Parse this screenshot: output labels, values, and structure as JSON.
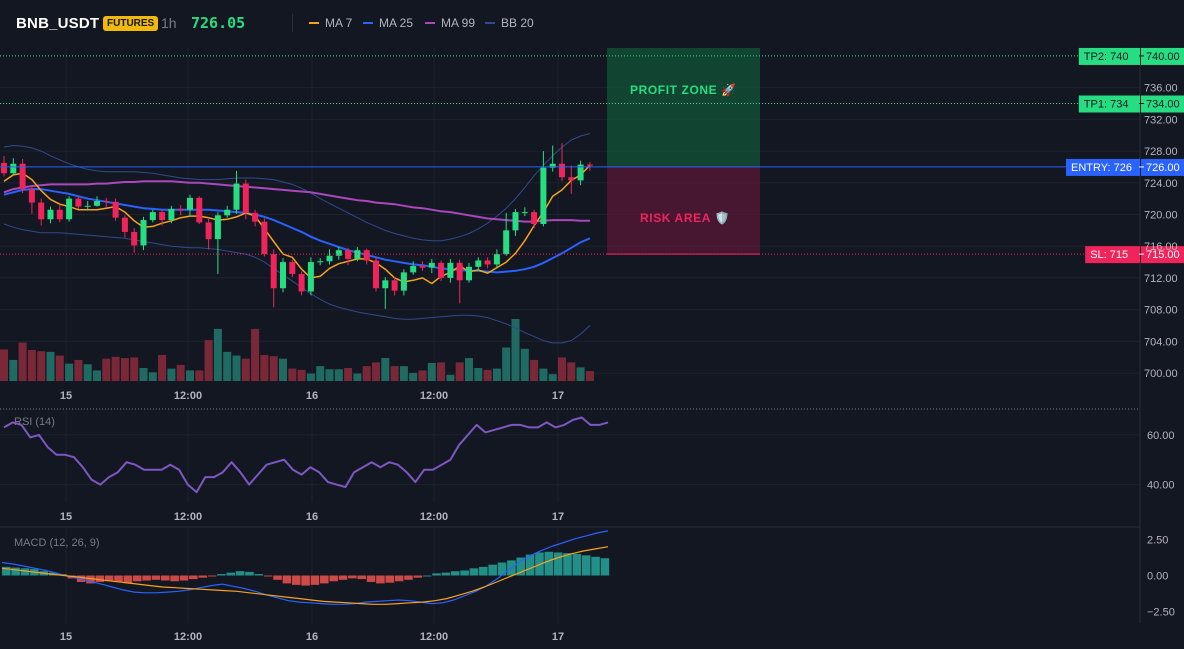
{
  "header": {
    "symbol": "BNB_USDT",
    "badge": "FUTURES",
    "timeframe": "1h",
    "price": "726.05"
  },
  "indicators": [
    {
      "label": "MA 7",
      "color": "#f7a21b"
    },
    {
      "label": "MA 25",
      "color": "#2962ff"
    },
    {
      "label": "MA 99",
      "color": "#ab47bc"
    },
    {
      "label": "BB 20",
      "color": "#2f4b8e"
    }
  ],
  "zones": {
    "profit_label": "PROFIT ZONE 🚀",
    "risk_label": "RISK AREA 🛡️"
  },
  "levels": [
    {
      "price": 740,
      "tag": "TP2: 740",
      "axis_label": "740.00",
      "color": "#26de81",
      "text_color": "#131722",
      "line": "dotted"
    },
    {
      "price": 734,
      "tag": "TP1: 734",
      "axis_label": "734.00",
      "color": "#26de81",
      "text_color": "#131722",
      "line": "dotted"
    },
    {
      "price": 726,
      "tag": "ENTRY: 726",
      "axis_label": "726.00",
      "color": "#2962ff",
      "text_color": "#ffffff",
      "line": "solid"
    },
    {
      "price": 715,
      "tag": "SL: 715",
      "axis_label": "715.00",
      "color": "#f0245b",
      "text_color": "#ffffff",
      "line": "dotted"
    }
  ],
  "x_ticks": [
    "15",
    "12:00",
    "16",
    "12:00",
    "17"
  ],
  "rsi_label": "RSI (14)",
  "macd_label": "MACD (12, 26, 9)",
  "chart_data": [
    {
      "type": "candlestick",
      "title": "BNB_USDT",
      "ylim": [
        699,
        741
      ],
      "yticks": [
        700,
        704,
        708,
        712,
        716,
        720,
        724,
        728,
        732,
        736
      ],
      "ytick_labels": [
        "700.00",
        "704.00",
        "708.00",
        "712.00",
        "716.00",
        "720.00",
        "724.00",
        "728.00",
        "732.00",
        "736.00"
      ],
      "open": [
        726.5,
        725.2,
        726.4,
        723.2,
        721.5,
        719.4,
        720.6,
        719.4,
        722.0,
        721.0,
        721.1,
        721.7,
        721.6,
        719.6,
        717.8,
        716.1,
        719.3,
        720.3,
        719.3,
        720.7,
        720.6,
        722.1,
        719.0,
        716.9,
        719.9,
        720.6,
        723.9,
        720.2,
        719.1,
        715.0,
        710.7,
        714.0,
        712.5,
        710.3,
        714.0,
        714.1,
        714.8,
        715.5,
        714.4,
        715.5,
        714.2,
        710.7,
        711.7,
        710.4,
        712.7,
        713.5,
        713.3,
        713.9,
        712.0,
        713.9,
        711.7,
        713.4,
        714.2,
        713.7,
        715.0,
        718.0,
        720.3,
        720.3,
        718.8,
        725.9,
        726.4,
        724.7,
        724.3,
        726.3
      ],
      "close": [
        725.2,
        726.4,
        723.2,
        721.5,
        719.4,
        720.6,
        719.4,
        722.0,
        721.0,
        721.1,
        721.7,
        721.6,
        719.6,
        717.8,
        716.1,
        719.3,
        720.3,
        719.3,
        720.7,
        720.6,
        722.1,
        719.0,
        716.9,
        719.9,
        720.6,
        723.9,
        720.2,
        719.1,
        715.0,
        710.7,
        714.0,
        712.5,
        710.3,
        714.0,
        714.1,
        714.8,
        715.5,
        714.4,
        715.5,
        714.2,
        710.7,
        711.7,
        710.4,
        712.7,
        713.5,
        713.3,
        713.9,
        712.0,
        713.9,
        711.7,
        713.4,
        714.2,
        713.7,
        715.0,
        718.0,
        720.3,
        720.3,
        718.8,
        725.9,
        726.4,
        724.7,
        724.3,
        726.3,
        726.2
      ],
      "high": [
        727.4,
        727.1,
        727.0,
        723.6,
        722.0,
        721.0,
        721.3,
        722.3,
        722.3,
        721.7,
        722.3,
        722.1,
        722.0,
        719.9,
        718.3,
        719.7,
        720.6,
        720.6,
        721.1,
        721.2,
        722.5,
        722.3,
        719.6,
        720.3,
        721.1,
        725.5,
        724.4,
        720.6,
        719.5,
        715.6,
        714.5,
        714.3,
        712.8,
        714.6,
        714.5,
        715.6,
        715.9,
        715.8,
        715.9,
        715.7,
        714.6,
        712.1,
        712.1,
        713.1,
        714.1,
        714.1,
        714.4,
        714.2,
        714.4,
        714.3,
        713.9,
        714.6,
        714.6,
        715.6,
        720.2,
        720.7,
        720.9,
        720.6,
        728.0,
        728.7,
        729.0,
        726.2,
        726.8,
        726.6
      ],
      "low": [
        724.8,
        724.9,
        722.7,
        720.1,
        718.6,
        718.9,
        719.0,
        719.1,
        720.7,
        720.6,
        721.0,
        720.9,
        719.2,
        717.1,
        715.2,
        715.5,
        719.0,
        718.6,
        718.9,
        719.9,
        719.8,
        718.8,
        715.6,
        712.5,
        719.6,
        720.1,
        719.4,
        718.5,
        714.7,
        708.3,
        710.2,
        712.1,
        709.8,
        709.8,
        713.6,
        713.7,
        714.3,
        713.6,
        714.1,
        713.7,
        710.3,
        708.1,
        709.8,
        709.8,
        712.4,
        712.9,
        712.6,
        711.6,
        711.4,
        708.8,
        711.4,
        712.9,
        713.2,
        713.2,
        714.8,
        717.3,
        719.8,
        718.3,
        718.5,
        725.4,
        724.2,
        722.6,
        723.7,
        725.5
      ],
      "volume": [
        0.51,
        0.34,
        0.62,
        0.5,
        0.48,
        0.47,
        0.41,
        0.28,
        0.34,
        0.27,
        0.17,
        0.36,
        0.39,
        0.37,
        0.38,
        0.21,
        0.14,
        0.42,
        0.2,
        0.26,
        0.17,
        0.17,
        0.66,
        0.84,
        0.47,
        0.41,
        0.36,
        0.84,
        0.42,
        0.4,
        0.36,
        0.2,
        0.18,
        0.12,
        0.24,
        0.19,
        0.19,
        0.21,
        0.12,
        0.24,
        0.3,
        0.37,
        0.24,
        0.24,
        0.13,
        0.17,
        0.29,
        0.3,
        0.1,
        0.3,
        0.37,
        0.21,
        0.18,
        0.2,
        0.54,
        1.0,
        0.52,
        0.34,
        0.2,
        0.11,
        0.38,
        0.3,
        0.22,
        0.16
      ],
      "ma7": [
        724.2,
        725.0,
        725.2,
        724.4,
        723.0,
        721.9,
        721.3,
        721.0,
        720.6,
        720.6,
        720.6,
        720.8,
        721.0,
        720.3,
        719.2,
        718.4,
        718.5,
        718.9,
        719.2,
        719.6,
        719.8,
        719.8,
        719.6,
        719.3,
        719.4,
        719.7,
        720.2,
        719.8,
        718.2,
        716.6,
        715.0,
        714.6,
        713.1,
        712.0,
        712.2,
        713.2,
        713.8,
        714.1,
        714.4,
        714.4,
        713.9,
        713.1,
        712.0,
        711.5,
        711.7,
        712.0,
        711.3,
        712.2,
        712.7,
        713.5,
        712.8,
        713.0,
        712.6,
        713.3,
        714.0,
        715.1,
        716.7,
        718.6,
        720.3,
        722.3,
        723.1,
        724.3,
        725.0,
        726.2
      ],
      "ma25": [
        722.5,
        722.8,
        723.1,
        723.2,
        723.2,
        723.0,
        722.8,
        722.6,
        722.3,
        722.0,
        721.8,
        721.6,
        721.4,
        721.2,
        721.0,
        720.8,
        720.7,
        720.6,
        720.6,
        720.6,
        720.6,
        720.6,
        720.6,
        720.5,
        720.4,
        720.3,
        720.2,
        720.0,
        719.7,
        719.3,
        718.8,
        718.3,
        717.8,
        717.2,
        716.7,
        716.3,
        715.9,
        715.5,
        715.2,
        714.9,
        714.6,
        714.3,
        714.1,
        713.9,
        713.7,
        713.6,
        713.4,
        713.2,
        713.1,
        713.0,
        712.9,
        712.9,
        712.8,
        712.7,
        712.8,
        712.9,
        713.1,
        713.4,
        713.9,
        714.5,
        715.1,
        715.8,
        716.5,
        717.0
      ],
      "ma99": [
        722.8,
        723.2,
        723.4,
        723.6,
        723.7,
        723.8,
        723.8,
        723.8,
        723.8,
        723.8,
        723.9,
        723.9,
        724.0,
        724.1,
        724.1,
        724.2,
        724.2,
        724.2,
        724.2,
        724.1,
        724.0,
        724.0,
        723.9,
        723.8,
        723.7,
        723.6,
        723.5,
        723.4,
        723.3,
        723.2,
        723.1,
        723.0,
        722.9,
        722.8,
        722.6,
        722.4,
        722.2,
        722.0,
        721.8,
        721.7,
        721.5,
        721.4,
        721.3,
        721.1,
        720.9,
        720.8,
        720.6,
        720.4,
        720.3,
        720.1,
        719.9,
        719.7,
        719.5,
        719.4,
        719.3,
        719.2,
        719.1,
        719.1,
        719.2,
        719.3,
        719.3,
        719.3,
        719.2,
        719.2
      ],
      "bb_upper": [
        728.5,
        728.7,
        728.6,
        728.4,
        728.0,
        727.4,
        726.9,
        726.4,
        726.0,
        725.7,
        725.5,
        725.4,
        725.4,
        725.4,
        725.4,
        725.3,
        725.2,
        725.0,
        724.8,
        724.6,
        724.5,
        724.4,
        724.4,
        724.4,
        724.5,
        724.6,
        724.6,
        724.6,
        724.5,
        724.4,
        724.1,
        723.8,
        723.3,
        722.7,
        722.0,
        721.4,
        720.8,
        720.2,
        719.6,
        719.0,
        718.5,
        718.0,
        717.6,
        717.3,
        717.0,
        716.8,
        716.7,
        716.7,
        716.9,
        717.2,
        717.6,
        718.2,
        718.9,
        719.8,
        720.8,
        722.0,
        723.4,
        724.9,
        726.2,
        727.4,
        728.5,
        729.4,
        729.9,
        730.2
      ],
      "bb_lower": [
        718.8,
        718.4,
        718.1,
        717.9,
        717.7,
        717.7,
        717.7,
        717.6,
        717.5,
        717.4,
        717.3,
        717.2,
        717.1,
        717.0,
        716.8,
        716.6,
        716.4,
        716.2,
        716.0,
        715.9,
        715.8,
        715.8,
        715.7,
        715.6,
        715.4,
        715.2,
        715.0,
        714.6,
        714.0,
        713.2,
        712.4,
        711.6,
        710.8,
        710.0,
        709.3,
        708.7,
        708.3,
        708.0,
        707.7,
        707.5,
        707.3,
        707.1,
        706.9,
        706.8,
        706.8,
        706.9,
        707.0,
        707.1,
        707.2,
        707.3,
        707.3,
        707.2,
        707.0,
        706.6,
        706.2,
        705.7,
        705.1,
        704.6,
        704.1,
        703.8,
        703.8,
        704.1,
        704.9,
        706.0
      ]
    },
    {
      "type": "line",
      "title": "RSI (14)",
      "ylim": [
        33,
        70
      ],
      "yticks": [
        40,
        60
      ],
      "ytick_labels": [
        "40.00",
        "60.00"
      ],
      "values": [
        63,
        65,
        64,
        59,
        60,
        55,
        52,
        52,
        51,
        47,
        42,
        40,
        43,
        45,
        49,
        48,
        46,
        46,
        46,
        48,
        46,
        40,
        37,
        43,
        43,
        45,
        49,
        45,
        40,
        44,
        48,
        49,
        50,
        46,
        44,
        47,
        45,
        41,
        40,
        39,
        45,
        47,
        49,
        47,
        49,
        48,
        45,
        41,
        46,
        46,
        48,
        50,
        56,
        60,
        64,
        61,
        62,
        63,
        64,
        64,
        63,
        63,
        65,
        63,
        64,
        66,
        67,
        64,
        64,
        65
      ]
    },
    {
      "type": "bar+line",
      "title": "MACD (12, 26, 9)",
      "ylim": [
        -3.3,
        3.3
      ],
      "yticks": [
        2.5,
        0,
        -2.5
      ],
      "ytick_labels": [
        "2.50",
        "0.00",
        "−2.50"
      ],
      "histogram": [
        0.6,
        0.55,
        0.5,
        0.45,
        0.3,
        0.2,
        0.1,
        -0.2,
        -0.45,
        -0.55,
        -0.45,
        -0.4,
        -0.45,
        -0.55,
        -0.4,
        -0.35,
        -0.3,
        -0.35,
        -0.4,
        -0.35,
        -0.25,
        -0.15,
        -0.05,
        0.1,
        0.2,
        0.3,
        0.25,
        0.1,
        -0.05,
        -0.3,
        -0.55,
        -0.65,
        -0.7,
        -0.65,
        -0.55,
        -0.4,
        -0.3,
        -0.2,
        -0.25,
        -0.45,
        -0.55,
        -0.5,
        -0.4,
        -0.3,
        -0.15,
        0.0,
        0.15,
        0.2,
        0.3,
        0.35,
        0.5,
        0.6,
        0.75,
        0.9,
        1.05,
        1.25,
        1.45,
        1.6,
        1.65,
        1.6,
        1.55,
        1.5,
        1.4,
        1.3,
        1.2
      ],
      "macd": [
        0.9,
        0.8,
        0.65,
        0.5,
        0.35,
        0.15,
        -0.05,
        -0.2,
        -0.4,
        -0.6,
        -0.8,
        -1.0,
        -1.15,
        -1.2,
        -1.2,
        -1.15,
        -1.1,
        -1.0,
        -0.85,
        -0.7,
        -0.6,
        -0.75,
        -0.9,
        -1.1,
        -1.35,
        -1.55,
        -1.75,
        -1.85,
        -1.9,
        -1.95,
        -2.0,
        -2.0,
        -1.95,
        -1.85,
        -1.8,
        -1.75,
        -1.7,
        -1.75,
        -1.85,
        -1.95,
        -1.9,
        -1.7,
        -1.4,
        -1.1,
        -0.7,
        -0.2,
        0.4,
        0.95,
        1.4,
        1.75,
        2.05,
        2.3,
        2.55,
        2.75,
        2.95,
        3.1
      ],
      "signal": [
        0.5,
        0.4,
        0.3,
        0.2,
        0.1,
        0.0,
        -0.1,
        -0.2,
        -0.3,
        -0.4,
        -0.5,
        -0.6,
        -0.7,
        -0.8,
        -0.85,
        -0.9,
        -0.95,
        -1.0,
        -1.05,
        -1.1,
        -1.2,
        -1.3,
        -1.4,
        -1.5,
        -1.6,
        -1.7,
        -1.8,
        -1.85,
        -1.9,
        -1.95,
        -2.0,
        -2.0,
        -1.95,
        -1.9,
        -1.85,
        -1.75,
        -1.6,
        -1.35,
        -1.1,
        -0.8,
        -0.45,
        -0.1,
        0.25,
        0.6,
        0.95,
        1.25,
        1.5,
        1.7,
        1.85,
        2.0
      ]
    }
  ]
}
